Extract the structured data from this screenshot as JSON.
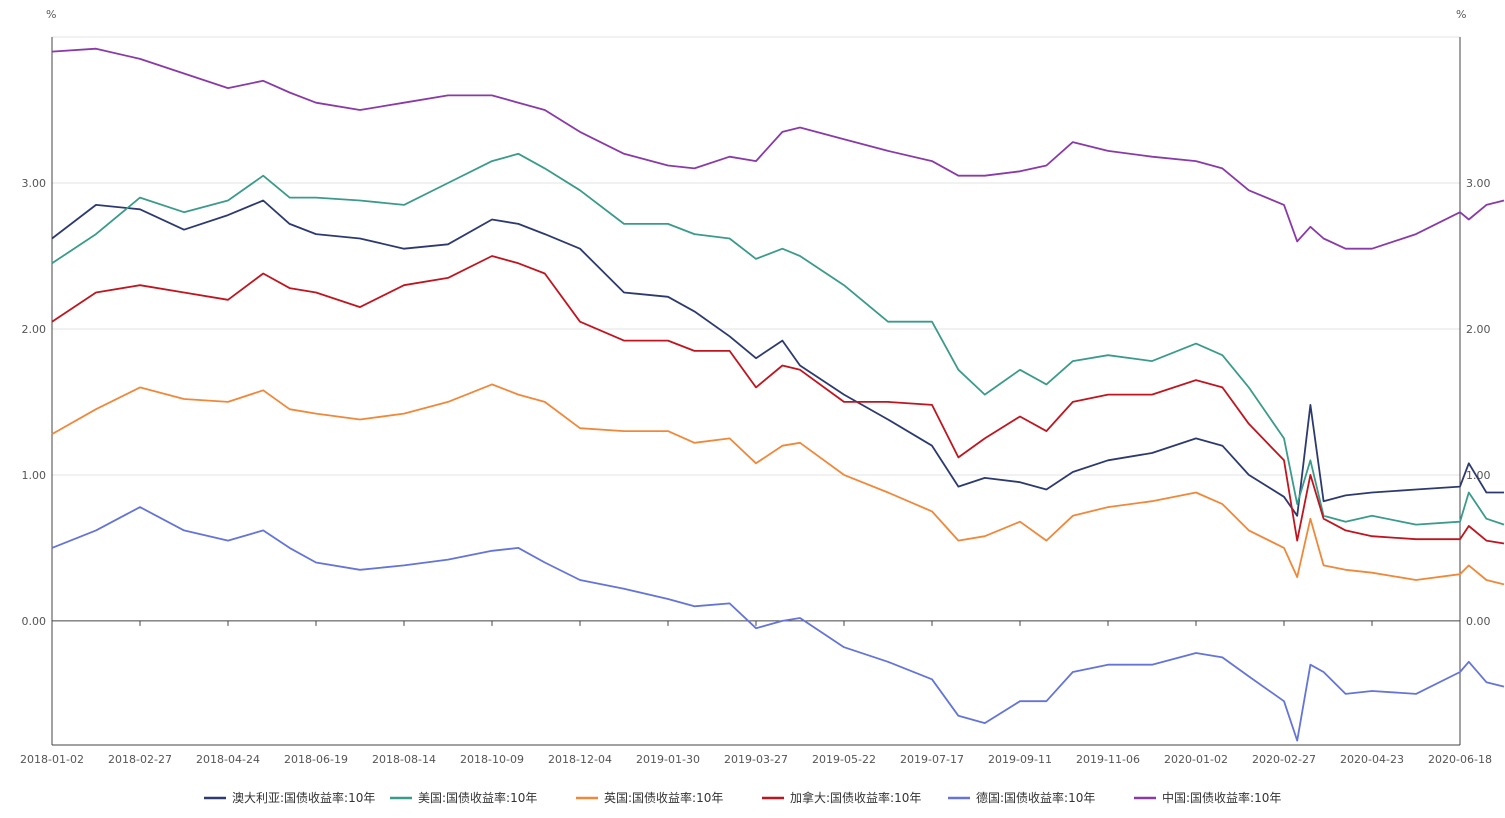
{
  "chart_data": {
    "type": "line",
    "left_axis_unit": "%",
    "right_axis_unit": "%",
    "ylim": [
      -0.85,
      4.0
    ],
    "yticks": [
      "0.00",
      "1.00",
      "2.00",
      "3.00"
    ],
    "ytick_values": [
      0,
      1,
      2,
      3
    ],
    "x_tick_labels": [
      "2018-01-02",
      "2018-02-27",
      "2018-04-24",
      "2018-06-19",
      "2018-08-14",
      "2018-10-09",
      "2018-12-04",
      "2019-01-30",
      "2019-03-27",
      "2019-05-22",
      "2019-07-17",
      "2019-09-11",
      "2019-11-06",
      "2020-01-02",
      "2020-02-27",
      "2020-04-23",
      "2020-06-18"
    ],
    "grid": true,
    "legend_position": "bottom-center",
    "x_index_max": 16,
    "series": [
      {
        "name": "澳大利亚:国债收益率:10年",
        "color": "#2d3a70",
        "points": [
          [
            0,
            2.62
          ],
          [
            0.5,
            2.85
          ],
          [
            1,
            2.82
          ],
          [
            1.5,
            2.68
          ],
          [
            2,
            2.78
          ],
          [
            2.4,
            2.88
          ],
          [
            2.7,
            2.72
          ],
          [
            3,
            2.65
          ],
          [
            3.5,
            2.62
          ],
          [
            4,
            2.55
          ],
          [
            4.5,
            2.58
          ],
          [
            5,
            2.75
          ],
          [
            5.3,
            2.72
          ],
          [
            5.6,
            2.65
          ],
          [
            6,
            2.55
          ],
          [
            6.5,
            2.25
          ],
          [
            7,
            2.22
          ],
          [
            7.3,
            2.12
          ],
          [
            7.7,
            1.95
          ],
          [
            8,
            1.8
          ],
          [
            8.3,
            1.92
          ],
          [
            8.5,
            1.75
          ],
          [
            9,
            1.55
          ],
          [
            9.5,
            1.38
          ],
          [
            10,
            1.2
          ],
          [
            10.3,
            0.92
          ],
          [
            10.6,
            0.98
          ],
          [
            11,
            0.95
          ],
          [
            11.3,
            0.9
          ],
          [
            11.6,
            1.02
          ],
          [
            12,
            1.1
          ],
          [
            12.5,
            1.15
          ],
          [
            13,
            1.25
          ],
          [
            13.3,
            1.2
          ],
          [
            13.6,
            1.0
          ],
          [
            14,
            0.85
          ],
          [
            14.15,
            0.72
          ],
          [
            14.3,
            1.48
          ],
          [
            14.45,
            0.82
          ],
          [
            14.7,
            0.86
          ],
          [
            15,
            0.88
          ],
          [
            15.5,
            0.9
          ],
          [
            16,
            0.92
          ],
          [
            16.1,
            1.08
          ],
          [
            16.3,
            0.88
          ],
          [
            16.5,
            0.88
          ]
        ]
      },
      {
        "name": "美国:国债收益率:10年",
        "color": "#3b9b8a",
        "points": [
          [
            0,
            2.45
          ],
          [
            0.5,
            2.65
          ],
          [
            1,
            2.9
          ],
          [
            1.5,
            2.8
          ],
          [
            2,
            2.88
          ],
          [
            2.4,
            3.05
          ],
          [
            2.7,
            2.9
          ],
          [
            3,
            2.9
          ],
          [
            3.5,
            2.88
          ],
          [
            4,
            2.85
          ],
          [
            4.5,
            3.0
          ],
          [
            5,
            3.15
          ],
          [
            5.3,
            3.2
          ],
          [
            5.6,
            3.1
          ],
          [
            6,
            2.95
          ],
          [
            6.5,
            2.72
          ],
          [
            7,
            2.72
          ],
          [
            7.3,
            2.65
          ],
          [
            7.7,
            2.62
          ],
          [
            8,
            2.48
          ],
          [
            8.3,
            2.55
          ],
          [
            8.5,
            2.5
          ],
          [
            9,
            2.3
          ],
          [
            9.5,
            2.05
          ],
          [
            10,
            2.05
          ],
          [
            10.3,
            1.72
          ],
          [
            10.6,
            1.55
          ],
          [
            11,
            1.72
          ],
          [
            11.3,
            1.62
          ],
          [
            11.6,
            1.78
          ],
          [
            12,
            1.82
          ],
          [
            12.5,
            1.78
          ],
          [
            13,
            1.9
          ],
          [
            13.3,
            1.82
          ],
          [
            13.6,
            1.6
          ],
          [
            14,
            1.25
          ],
          [
            14.15,
            0.8
          ],
          [
            14.3,
            1.1
          ],
          [
            14.45,
            0.72
          ],
          [
            14.7,
            0.68
          ],
          [
            15,
            0.72
          ],
          [
            15.5,
            0.66
          ],
          [
            16,
            0.68
          ],
          [
            16.1,
            0.88
          ],
          [
            16.3,
            0.7
          ],
          [
            16.5,
            0.66
          ]
        ]
      },
      {
        "name": "英国:国债收益率:10年",
        "color": "#f0883a",
        "points": [
          [
            0,
            1.28
          ],
          [
            0.5,
            1.45
          ],
          [
            1,
            1.6
          ],
          [
            1.5,
            1.52
          ],
          [
            2,
            1.5
          ],
          [
            2.4,
            1.58
          ],
          [
            2.7,
            1.45
          ],
          [
            3,
            1.42
          ],
          [
            3.5,
            1.38
          ],
          [
            4,
            1.42
          ],
          [
            4.5,
            1.5
          ],
          [
            5,
            1.62
          ],
          [
            5.3,
            1.55
          ],
          [
            5.6,
            1.5
          ],
          [
            6,
            1.32
          ],
          [
            6.5,
            1.3
          ],
          [
            7,
            1.3
          ],
          [
            7.3,
            1.22
          ],
          [
            7.7,
            1.25
          ],
          [
            8,
            1.08
          ],
          [
            8.3,
            1.2
          ],
          [
            8.5,
            1.22
          ],
          [
            9,
            1.0
          ],
          [
            9.5,
            0.88
          ],
          [
            10,
            0.75
          ],
          [
            10.3,
            0.55
          ],
          [
            10.6,
            0.58
          ],
          [
            11,
            0.68
          ],
          [
            11.3,
            0.55
          ],
          [
            11.6,
            0.72
          ],
          [
            12,
            0.78
          ],
          [
            12.5,
            0.82
          ],
          [
            13,
            0.88
          ],
          [
            13.3,
            0.8
          ],
          [
            13.6,
            0.62
          ],
          [
            14,
            0.5
          ],
          [
            14.15,
            0.3
          ],
          [
            14.3,
            0.7
          ],
          [
            14.45,
            0.38
          ],
          [
            14.7,
            0.35
          ],
          [
            15,
            0.33
          ],
          [
            15.5,
            0.28
          ],
          [
            16,
            0.32
          ],
          [
            16.1,
            0.38
          ],
          [
            16.3,
            0.28
          ],
          [
            16.5,
            0.25
          ]
        ]
      },
      {
        "name": "加拿大:国债收益率:10年",
        "color": "#c0151f",
        "points": [
          [
            0,
            2.05
          ],
          [
            0.5,
            2.25
          ],
          [
            1,
            2.3
          ],
          [
            1.5,
            2.25
          ],
          [
            2,
            2.2
          ],
          [
            2.4,
            2.38
          ],
          [
            2.7,
            2.28
          ],
          [
            3,
            2.25
          ],
          [
            3.5,
            2.15
          ],
          [
            4,
            2.3
          ],
          [
            4.5,
            2.35
          ],
          [
            5,
            2.5
          ],
          [
            5.3,
            2.45
          ],
          [
            5.6,
            2.38
          ],
          [
            6,
            2.05
          ],
          [
            6.5,
            1.92
          ],
          [
            7,
            1.92
          ],
          [
            7.3,
            1.85
          ],
          [
            7.7,
            1.85
          ],
          [
            8,
            1.6
          ],
          [
            8.3,
            1.75
          ],
          [
            8.5,
            1.72
          ],
          [
            9,
            1.5
          ],
          [
            9.5,
            1.5
          ],
          [
            10,
            1.48
          ],
          [
            10.3,
            1.12
          ],
          [
            10.6,
            1.25
          ],
          [
            11,
            1.4
          ],
          [
            11.3,
            1.3
          ],
          [
            11.6,
            1.5
          ],
          [
            12,
            1.55
          ],
          [
            12.5,
            1.55
          ],
          [
            13,
            1.65
          ],
          [
            13.3,
            1.6
          ],
          [
            13.6,
            1.35
          ],
          [
            14,
            1.1
          ],
          [
            14.15,
            0.55
          ],
          [
            14.3,
            1.0
          ],
          [
            14.45,
            0.7
          ],
          [
            14.7,
            0.62
          ],
          [
            15,
            0.58
          ],
          [
            15.5,
            0.56
          ],
          [
            16,
            0.56
          ],
          [
            16.1,
            0.65
          ],
          [
            16.3,
            0.55
          ],
          [
            16.5,
            0.53
          ]
        ]
      },
      {
        "name": "德国:国债收益率:10年",
        "color": "#6474d8",
        "points": [
          [
            0,
            0.5
          ],
          [
            0.5,
            0.62
          ],
          [
            1,
            0.78
          ],
          [
            1.5,
            0.62
          ],
          [
            2,
            0.55
          ],
          [
            2.4,
            0.62
          ],
          [
            2.7,
            0.5
          ],
          [
            3,
            0.4
          ],
          [
            3.5,
            0.35
          ],
          [
            4,
            0.38
          ],
          [
            4.5,
            0.42
          ],
          [
            5,
            0.48
          ],
          [
            5.3,
            0.5
          ],
          [
            5.6,
            0.4
          ],
          [
            6,
            0.28
          ],
          [
            6.5,
            0.22
          ],
          [
            7,
            0.15
          ],
          [
            7.3,
            0.1
          ],
          [
            7.7,
            0.12
          ],
          [
            8,
            -0.05
          ],
          [
            8.3,
            0.0
          ],
          [
            8.5,
            0.02
          ],
          [
            9,
            -0.18
          ],
          [
            9.5,
            -0.28
          ],
          [
            10,
            -0.4
          ],
          [
            10.3,
            -0.65
          ],
          [
            10.6,
            -0.7
          ],
          [
            11,
            -0.55
          ],
          [
            11.3,
            -0.55
          ],
          [
            11.6,
            -0.35
          ],
          [
            12,
            -0.3
          ],
          [
            12.5,
            -0.3
          ],
          [
            13,
            -0.22
          ],
          [
            13.3,
            -0.25
          ],
          [
            13.6,
            -0.38
          ],
          [
            14,
            -0.55
          ],
          [
            14.15,
            -0.82
          ],
          [
            14.3,
            -0.3
          ],
          [
            14.45,
            -0.35
          ],
          [
            14.7,
            -0.5
          ],
          [
            15,
            -0.48
          ],
          [
            15.5,
            -0.5
          ],
          [
            16,
            -0.35
          ],
          [
            16.1,
            -0.28
          ],
          [
            16.3,
            -0.42
          ],
          [
            16.5,
            -0.45
          ]
        ]
      },
      {
        "name": "中国:国债收益率:10年",
        "color": "#8a3aa8",
        "points": [
          [
            0,
            3.9
          ],
          [
            0.5,
            3.92
          ],
          [
            1,
            3.85
          ],
          [
            1.5,
            3.75
          ],
          [
            2,
            3.65
          ],
          [
            2.4,
            3.7
          ],
          [
            2.7,
            3.62
          ],
          [
            3,
            3.55
          ],
          [
            3.5,
            3.5
          ],
          [
            4,
            3.55
          ],
          [
            4.5,
            3.6
          ],
          [
            5,
            3.6
          ],
          [
            5.3,
            3.55
          ],
          [
            5.6,
            3.5
          ],
          [
            6,
            3.35
          ],
          [
            6.5,
            3.2
          ],
          [
            7,
            3.12
          ],
          [
            7.3,
            3.1
          ],
          [
            7.7,
            3.18
          ],
          [
            8,
            3.15
          ],
          [
            8.3,
            3.35
          ],
          [
            8.5,
            3.38
          ],
          [
            9,
            3.3
          ],
          [
            9.5,
            3.22
          ],
          [
            10,
            3.15
          ],
          [
            10.3,
            3.05
          ],
          [
            10.6,
            3.05
          ],
          [
            11,
            3.08
          ],
          [
            11.3,
            3.12
          ],
          [
            11.6,
            3.28
          ],
          [
            12,
            3.22
          ],
          [
            12.5,
            3.18
          ],
          [
            13,
            3.15
          ],
          [
            13.3,
            3.1
          ],
          [
            13.6,
            2.95
          ],
          [
            14,
            2.85
          ],
          [
            14.15,
            2.6
          ],
          [
            14.3,
            2.7
          ],
          [
            14.45,
            2.62
          ],
          [
            14.7,
            2.55
          ],
          [
            15,
            2.55
          ],
          [
            15.5,
            2.65
          ],
          [
            16,
            2.8
          ],
          [
            16.1,
            2.75
          ],
          [
            16.3,
            2.85
          ],
          [
            16.5,
            2.88
          ]
        ]
      }
    ]
  }
}
